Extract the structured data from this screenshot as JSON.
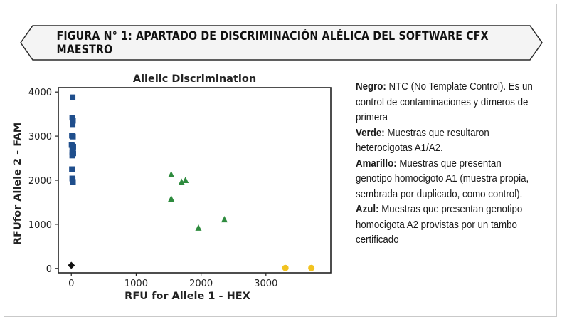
{
  "figure_title": "FIGURA N° 1: APARTADO DE DISCRIMINACIÓN ALÉLICA DEL SOFTWARE CFX MAESTRO",
  "legend": [
    {
      "label": "Negro:",
      "text": " NTC (No Template Control). Es un control de contaminaciones y dímeros de primera"
    },
    {
      "label": "Verde:",
      "text": " Muestras que resultaron heterocigotas A1/A2."
    },
    {
      "label": "Amarillo:",
      "text": " Muestras que presentan genotipo homocigoto A1 (muestra propia, sembrada por duplicado, como control)."
    },
    {
      "label": "Azul:",
      "text": " Muestras que presentan genotipo homocigota A2 provistas por un tambo certificado"
    }
  ],
  "chart_data": {
    "type": "scatter",
    "title": "Allelic Discrimination",
    "xlabel": "RFU for Allele 1 - HEX",
    "ylabel": "RFUfor Allele 2 - FAM",
    "xlim": [
      -200,
      4000
    ],
    "ylim": [
      -100,
      4100
    ],
    "xticks": [
      0,
      1000,
      2000,
      3000
    ],
    "yticks": [
      0,
      1000,
      2000,
      3000,
      4000
    ],
    "grid": false,
    "series": [
      {
        "marker": "square",
        "color": "#1f4e8c",
        "points": [
          [
            20,
            3880
          ],
          [
            15,
            3420
          ],
          [
            25,
            3350
          ],
          [
            20,
            3270
          ],
          [
            10,
            3010
          ],
          [
            25,
            2990
          ],
          [
            5,
            2800
          ],
          [
            15,
            2780
          ],
          [
            30,
            2760
          ],
          [
            15,
            2640
          ],
          [
            30,
            2610
          ],
          [
            15,
            2560
          ],
          [
            10,
            2250
          ],
          [
            15,
            2040
          ],
          [
            20,
            2000
          ],
          [
            25,
            1960
          ]
        ]
      },
      {
        "marker": "triangle",
        "color": "#2e8b3e",
        "points": [
          [
            1540,
            2130
          ],
          [
            1760,
            2000
          ],
          [
            1700,
            1960
          ],
          [
            1540,
            1580
          ],
          [
            2360,
            1110
          ],
          [
            1960,
            920
          ]
        ]
      },
      {
        "marker": "circle",
        "color": "#f2c320",
        "points": [
          [
            3300,
            10
          ],
          [
            3700,
            10
          ]
        ]
      },
      {
        "marker": "diamond",
        "color": "#111111",
        "points": [
          [
            0,
            70
          ]
        ]
      }
    ]
  }
}
